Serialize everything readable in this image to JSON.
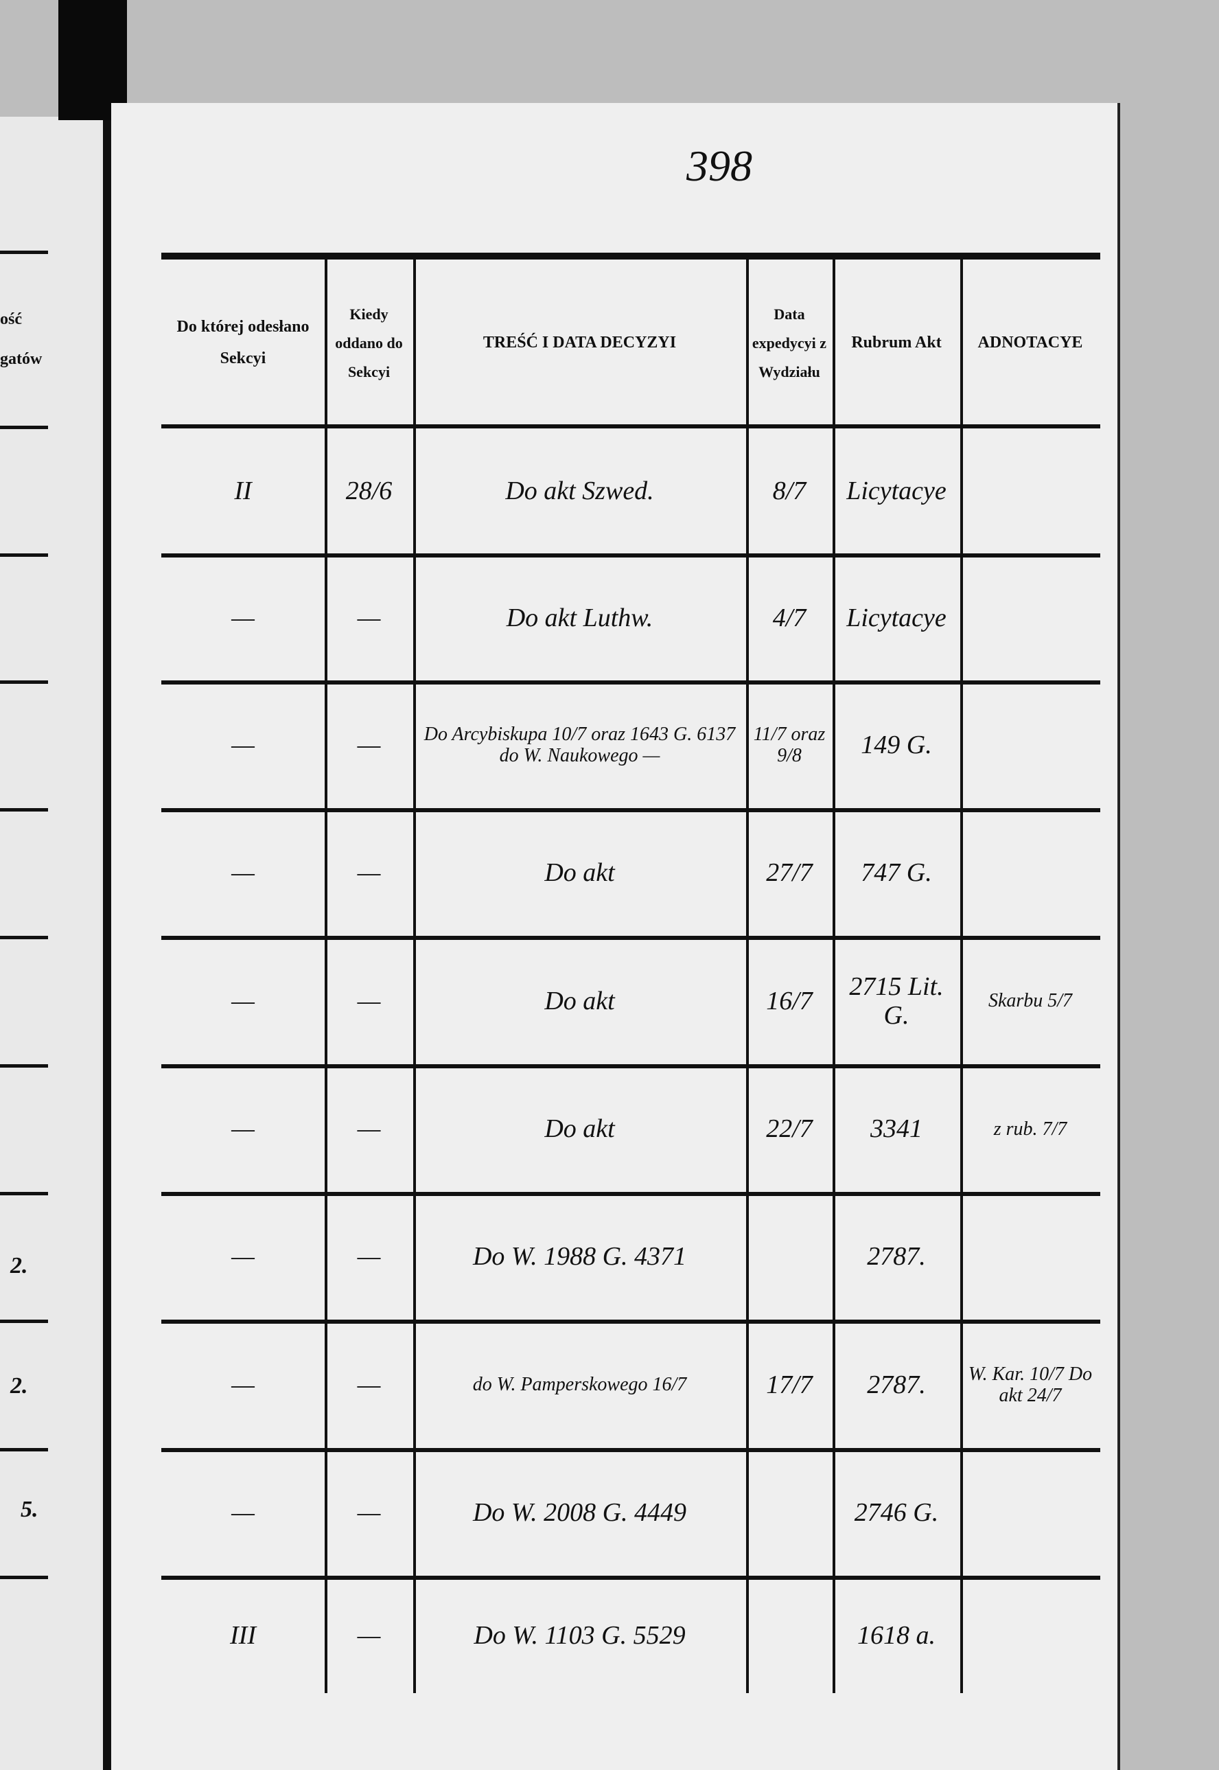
{
  "page_number": "398",
  "left_page_fragments": [
    "ość",
    "gatów",
    "2.",
    "2.",
    "5."
  ],
  "table": {
    "headers": [
      "Do której odesłano Sekcyi",
      "Kiedy oddano do Sekcyi",
      "TREŚĆ I DATA DECYZYI",
      "Data expedycyi z Wydziału",
      "Rubrum Akt",
      "ADNOTACYE"
    ],
    "rows": [
      [
        "II",
        "28/6",
        "Do akt Szwed.",
        "8/7",
        "Licytacye",
        ""
      ],
      [
        "—",
        "—",
        "Do akt Luthw.",
        "4/7",
        "Licytacye",
        ""
      ],
      [
        "—",
        "—",
        "Do Arcybiskupa 10/7 oraz 1643 G. 6137 do W. Naukowego —",
        "11/7 oraz 9/8",
        "149 G.",
        ""
      ],
      [
        "—",
        "—",
        "Do akt",
        "27/7",
        "747 G.",
        ""
      ],
      [
        "—",
        "—",
        "Do akt",
        "16/7",
        "2715 Lit. G.",
        "Skarbu 5/7"
      ],
      [
        "—",
        "—",
        "Do akt",
        "22/7",
        "3341",
        "z rub. 7/7"
      ],
      [
        "—",
        "—",
        "Do W. 1988 G. 4371",
        "",
        "2787.",
        ""
      ],
      [
        "—",
        "—",
        "do W. Pamperskowego 16/7",
        "17/7",
        "2787.",
        "W. Kar. 10/7 Do akt 24/7"
      ],
      [
        "—",
        "—",
        "Do W. 2008 G. 4449",
        "",
        "2746 G.",
        ""
      ],
      [
        "III",
        "—",
        "Do W. 1103 G. 5529",
        "",
        "1618 a.",
        ""
      ]
    ]
  }
}
